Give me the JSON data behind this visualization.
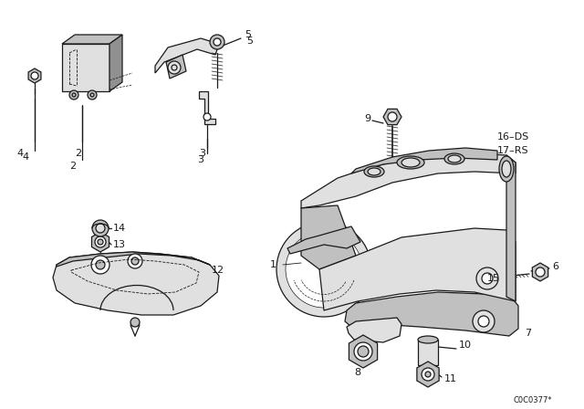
{
  "bg_color": "#ffffff",
  "line_color": "#1a1a1a",
  "watermark": "C0C0377*",
  "fig_w": 6.4,
  "fig_h": 4.48,
  "dpi": 100,
  "label_fontsize": 8.0,
  "watermark_fontsize": 6.0,
  "lw": 0.9,
  "gray_light": "#e0e0e0",
  "gray_mid": "#c0c0c0",
  "gray_dark": "#909090"
}
